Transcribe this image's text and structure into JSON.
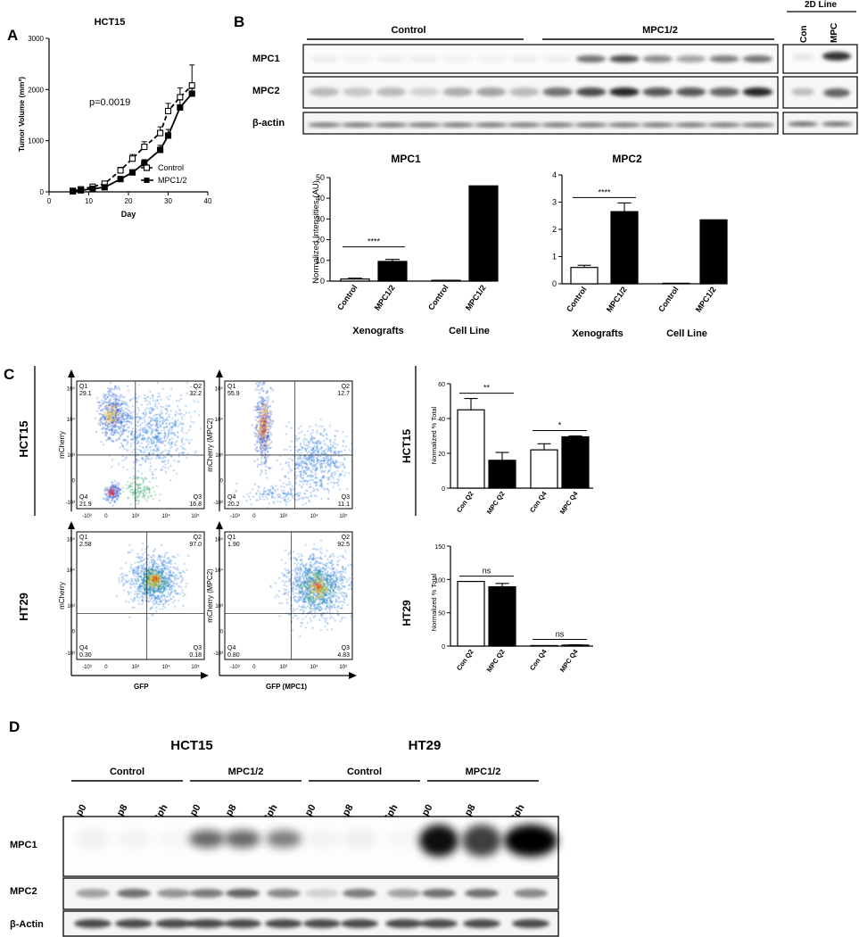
{
  "panels": {
    "a": "A",
    "b": "B",
    "c": "C",
    "d": "D"
  },
  "chart_data": [
    {
      "type": "line",
      "title": "HCT15",
      "xlabel": "Day",
      "ylabel": "Tumor Volume (mm³)",
      "xlim": [
        0,
        40
      ],
      "ylim": [
        0,
        3000
      ],
      "x_ticks": [
        "0",
        "10",
        "20",
        "30",
        "40"
      ],
      "y_ticks": [
        "0",
        "1000",
        "2000",
        "3000"
      ],
      "annotation": "p=0.0019",
      "legend": "center-right",
      "series": [
        {
          "name": "Control",
          "style": "dashed-open-square",
          "x": [
            6,
            8,
            11,
            14,
            18,
            21,
            24,
            28,
            30,
            33,
            36
          ],
          "y": [
            20,
            50,
            100,
            160,
            420,
            650,
            880,
            1150,
            1580,
            1850,
            2080
          ],
          "err": [
            10,
            15,
            20,
            30,
            60,
            80,
            100,
            120,
            150,
            180,
            400
          ]
        },
        {
          "name": "MPC1/2",
          "style": "solid-filled-square",
          "x": [
            6,
            8,
            11,
            14,
            18,
            21,
            24,
            28,
            30,
            33,
            36
          ],
          "y": [
            10,
            30,
            60,
            90,
            250,
            380,
            560,
            820,
            1100,
            1650,
            1920
          ],
          "err": [
            10,
            10,
            15,
            25,
            40,
            50,
            70,
            90,
            120,
            150,
            100
          ]
        }
      ]
    },
    {
      "type": "bar",
      "title": "MPC1",
      "ylabel": "Normalized Intensities (AU)",
      "ylim": [
        0,
        50
      ],
      "y_ticks": [
        "0",
        "10",
        "20",
        "30",
        "40",
        "50"
      ],
      "categories": [
        "Control",
        "MPC1/2",
        "Control",
        "MPC1/2"
      ],
      "groups": [
        "Xenografts",
        "Cell Line"
      ],
      "values": [
        1.0,
        9.5,
        0.4,
        46
      ],
      "err": [
        0.4,
        1.0,
        0,
        0
      ],
      "fills": [
        "#ffffff",
        "#000000",
        "#ffffff",
        "#000000"
      ],
      "significance": [
        {
          "from": 0,
          "to": 1,
          "label": "****"
        }
      ]
    },
    {
      "type": "bar",
      "title": "MPC2",
      "ylim": [
        0,
        4
      ],
      "y_ticks": [
        "0",
        "1",
        "2",
        "3",
        "4"
      ],
      "categories": [
        "Control",
        "MPC1/2",
        "Control",
        "MPC1/2"
      ],
      "groups": [
        "Xenografts",
        "Cell Line"
      ],
      "values": [
        0.6,
        2.65,
        0.02,
        2.35
      ],
      "err": [
        0.08,
        0.32,
        0,
        0
      ],
      "fills": [
        "#ffffff",
        "#000000",
        "#ffffff",
        "#000000"
      ],
      "significance": [
        {
          "from": 0,
          "to": 1,
          "label": "****"
        }
      ]
    },
    {
      "type": "bar",
      "title": "HCT15",
      "ylabel": "Normalized % Total",
      "ylim": [
        0,
        60
      ],
      "y_ticks": [
        "0",
        "20",
        "40",
        "60"
      ],
      "categories": [
        "Con Q2",
        "MPC Q2",
        "Con Q4",
        "MPC Q4"
      ],
      "values": [
        45,
        16,
        22,
        29.5
      ],
      "err": [
        6.5,
        4.5,
        3.5,
        0.5
      ],
      "fills": [
        "#ffffff",
        "#000000",
        "#ffffff",
        "#000000"
      ],
      "significance": [
        {
          "from": 0,
          "to": 1,
          "label": "**"
        },
        {
          "from": 2,
          "to": 3,
          "label": "*"
        }
      ]
    },
    {
      "type": "bar",
      "title": "HT29",
      "ylabel": "Normalized % Total",
      "ylim": [
        0,
        150
      ],
      "y_ticks": [
        "0",
        "50",
        "100",
        "150"
      ],
      "categories": [
        "Con Q2",
        "MPC Q2",
        "Con Q4",
        "MPC Q4"
      ],
      "values": [
        97,
        89,
        0.5,
        1.5
      ],
      "err": [
        0,
        5,
        0,
        0.5
      ],
      "fills": [
        "#ffffff",
        "#000000",
        "#ffffff",
        "#000000"
      ],
      "significance": [
        {
          "from": 0,
          "to": 1,
          "label": "ns"
        },
        {
          "from": 2,
          "to": 3,
          "label": "ns"
        }
      ]
    }
  ],
  "blotB": {
    "groups": [
      "Control",
      "MPC1/2",
      "2D Line"
    ],
    "lanes2d": [
      "Con",
      "MPC"
    ],
    "rows": [
      "MPC1",
      "MPC2",
      "β-actin"
    ]
  },
  "flow": {
    "rows": [
      "HCT15",
      "HT29"
    ],
    "xaxis": [
      "GFP",
      "GFP (MPC1)"
    ],
    "yaxis": [
      "mCherry",
      "mCherry (MPC2)"
    ],
    "ticks": [
      "-10³",
      "0",
      "10³",
      "10⁴",
      "10⁵"
    ],
    "plots": [
      {
        "q1": "Q1",
        "v1": "29.1",
        "q2": "Q2",
        "v2": "32.2",
        "q3": "Q3",
        "v3": "16.8",
        "q4": "Q4",
        "v4": "21.9"
      },
      {
        "q1": "Q1",
        "v1": "55.9",
        "q2": "Q2",
        "v2": "12.7",
        "q3": "Q3",
        "v3": "11.1",
        "q4": "Q4",
        "v4": "20.2"
      },
      {
        "q1": "Q1",
        "v1": "2.58",
        "q2": "Q2",
        "v2": "97.0",
        "q3": "Q3",
        "v3": "0.18",
        "q4": "Q4",
        "v4": "0.30"
      },
      {
        "q1": "Q1",
        "v1": "1.90",
        "q2": "Q2",
        "v2": "92.5",
        "q3": "Q3",
        "v3": "4.83",
        "q4": "Q4",
        "v4": "0.80"
      }
    ]
  },
  "blotD": {
    "lines": [
      "HCT15",
      "HT29"
    ],
    "groups": [
      "Control",
      "MPC1/2",
      "Control",
      "MPC1/2"
    ],
    "lanes": [
      "p0",
      "p8",
      "Sph",
      "p0",
      "p8",
      "Sph",
      "p0",
      "p8",
      "Sph",
      "p0",
      "p8",
      "Sph"
    ],
    "rows": [
      "MPC1",
      "MPC2",
      "β-Actin"
    ]
  }
}
